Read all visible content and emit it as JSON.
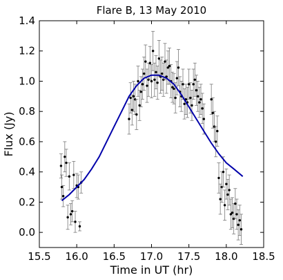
{
  "chart_data": {
    "type": "scatter",
    "title": "Flare B, 13 May 2010",
    "xlabel": "Time in UT (hr)",
    "ylabel": "Flux (Jy)",
    "xlim": [
      15.5,
      18.5
    ],
    "ylim": [
      -0.1,
      1.4
    ],
    "xticks": [
      "15.5",
      "16.0",
      "16.5",
      "17.0",
      "17.5",
      "18.0",
      "18.5"
    ],
    "yticks": [
      "0.0",
      "0.2",
      "0.4",
      "0.6",
      "0.8",
      "1.0",
      "1.2",
      "1.4"
    ],
    "grid": false,
    "colors": {
      "points": "#000000",
      "errorbars": "#777777",
      "fit": "#0000aa"
    },
    "series": [
      {
        "kind": "points_with_errorbars",
        "x": [
          15.79,
          15.8,
          15.82,
          15.84,
          15.86,
          15.88,
          15.9,
          15.92,
          15.94,
          15.96,
          15.98,
          16.0,
          16.02,
          16.04,
          16.06,
          16.7,
          16.72,
          16.74,
          16.76,
          16.78,
          16.8,
          16.82,
          16.84,
          16.86,
          16.88,
          16.9,
          16.92,
          16.94,
          16.96,
          16.98,
          17.0,
          17.02,
          17.04,
          17.06,
          17.08,
          17.1,
          17.12,
          17.14,
          17.16,
          17.18,
          17.2,
          17.22,
          17.24,
          17.26,
          17.28,
          17.3,
          17.32,
          17.34,
          17.36,
          17.38,
          17.4,
          17.42,
          17.44,
          17.46,
          17.48,
          17.5,
          17.52,
          17.54,
          17.56,
          17.58,
          17.6,
          17.62,
          17.64,
          17.66,
          17.68,
          17.7,
          17.8,
          17.82,
          17.84,
          17.86,
          17.88,
          17.9,
          17.92,
          17.94,
          17.96,
          17.98,
          18.0,
          18.02,
          18.04,
          18.06,
          18.08,
          18.1,
          18.12,
          18.14,
          18.16,
          18.18,
          18.2
        ],
        "y": [
          0.44,
          0.3,
          0.24,
          0.5,
          0.46,
          0.1,
          0.37,
          0.12,
          0.14,
          0.38,
          0.07,
          0.31,
          0.3,
          0.04,
          0.33,
          0.75,
          0.89,
          0.81,
          0.9,
          0.88,
          0.78,
          1.0,
          0.84,
          0.93,
          0.98,
          1.05,
          1.13,
          0.97,
          1.01,
          1.12,
          1.0,
          1.2,
          1.01,
          1.06,
          0.99,
          1.15,
          1.03,
          1.05,
          1.01,
          1.13,
          1.03,
          1.09,
          1.1,
          1.0,
          0.96,
          0.95,
          0.89,
          1.02,
          1.09,
          0.93,
          0.9,
          0.98,
          0.85,
          0.88,
          0.86,
          0.98,
          0.89,
          0.84,
          0.98,
          1.01,
          0.94,
          0.9,
          0.86,
          0.88,
          0.82,
          0.75,
          0.88,
          0.79,
          0.7,
          0.6,
          0.67,
          0.36,
          0.22,
          0.3,
          0.4,
          0.18,
          0.32,
          0.25,
          0.28,
          0.12,
          0.13,
          0.09,
          0.19,
          0.12,
          0.05,
          0.08,
          0.02
        ],
        "err": [
          0.08,
          0.08,
          0.07,
          0.1,
          0.09,
          0.08,
          0.09,
          0.07,
          0.07,
          0.09,
          0.07,
          0.08,
          0.08,
          0.03,
          0.07,
          0.1,
          0.1,
          0.1,
          0.1,
          0.1,
          0.1,
          0.1,
          0.1,
          0.1,
          0.1,
          0.11,
          0.11,
          0.11,
          0.11,
          0.11,
          0.11,
          0.13,
          0.11,
          0.11,
          0.11,
          0.12,
          0.11,
          0.11,
          0.11,
          0.12,
          0.11,
          0.11,
          0.12,
          0.11,
          0.1,
          0.1,
          0.1,
          0.11,
          0.12,
          0.1,
          0.1,
          0.1,
          0.1,
          0.1,
          0.1,
          0.1,
          0.1,
          0.1,
          0.1,
          0.11,
          0.1,
          0.1,
          0.1,
          0.1,
          0.1,
          0.1,
          0.1,
          0.1,
          0.1,
          0.1,
          0.1,
          0.1,
          0.1,
          0.1,
          0.1,
          0.1,
          0.1,
          0.1,
          0.1,
          0.1,
          0.1,
          0.1,
          0.1,
          0.1,
          0.1,
          0.1,
          0.1
        ]
      },
      {
        "kind": "fit_curve",
        "x": [
          15.8,
          15.9,
          16.0,
          16.1,
          16.2,
          16.3,
          16.4,
          16.5,
          16.6,
          16.7,
          16.8,
          16.9,
          17.0,
          17.1,
          17.2,
          17.3,
          17.4,
          17.5,
          17.6,
          17.7,
          17.8,
          17.9,
          18.0,
          18.1,
          18.22
        ],
        "y": [
          0.21,
          0.25,
          0.3,
          0.35,
          0.42,
          0.5,
          0.6,
          0.7,
          0.8,
          0.9,
          0.97,
          1.02,
          1.04,
          1.04,
          1.02,
          0.98,
          0.91,
          0.83,
          0.75,
          0.67,
          0.59,
          0.52,
          0.46,
          0.42,
          0.37
        ]
      }
    ]
  }
}
